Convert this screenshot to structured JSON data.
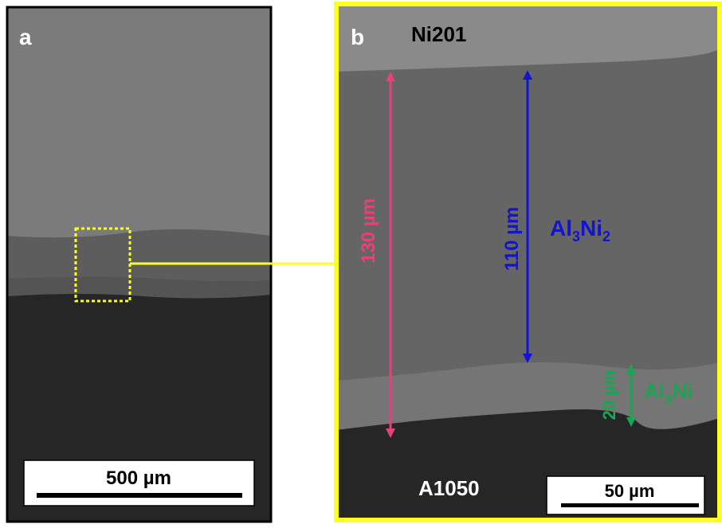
{
  "panel_a": {
    "label": "a",
    "scale_bar": "500 µm"
  },
  "panel_b": {
    "label": "b",
    "top_material": "Ni201",
    "bottom_material": "A1050",
    "total_thickness": "130 µm",
    "al3ni2_thickness": "110 µm",
    "al3ni_thickness": "20 µm",
    "al3ni2_label": [
      "Al",
      "3",
      "Ni",
      "2"
    ],
    "al3ni_label": [
      "Al",
      "3",
      "Ni"
    ],
    "scale_bar": "50 µm"
  }
}
